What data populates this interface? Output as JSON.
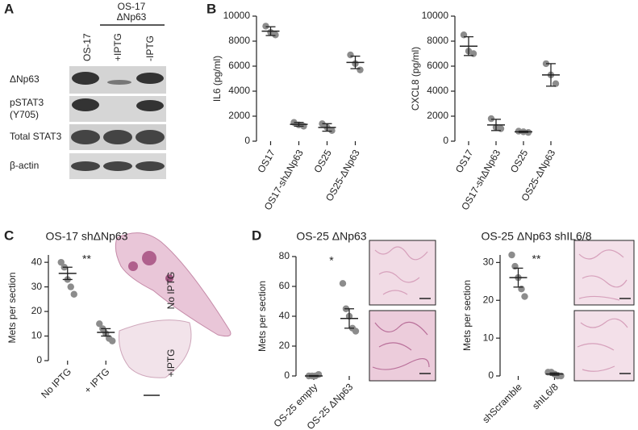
{
  "panels": {
    "A": {
      "label": "A",
      "header": [
        "OS-17",
        "ΔNp63"
      ],
      "lanes": [
        "OS-17",
        "+IPTG",
        "-IPTG"
      ],
      "rows": [
        [
          "ΔNp63"
        ],
        [
          "pSTAT3",
          "(Y705)"
        ],
        [
          "Total STAT3"
        ],
        [
          "β-actin"
        ]
      ]
    },
    "B": {
      "label": "B"
    },
    "C": {
      "label": "C",
      "image_labels": [
        "No IPTG",
        "+IPTG"
      ]
    },
    "D": {
      "label": "D"
    }
  },
  "chart_data": [
    {
      "type": "dot",
      "y_label": "IL6 (pg/ml)",
      "categories": [
        "OS17",
        "OS17-shΔNp63",
        "OS25",
        "OS25-ΔNp63"
      ],
      "points": [
        [
          9200,
          8700,
          8500
        ],
        [
          1500,
          1300,
          1200
        ],
        [
          1400,
          1100,
          850
        ],
        [
          6900,
          6200,
          5700
        ]
      ],
      "means": [
        8800,
        1350,
        1100,
        6300
      ],
      "errors": [
        350,
        150,
        300,
        500
      ],
      "color": "#8c8c8c",
      "ylim": [
        0,
        10000
      ],
      "yticks": [
        0,
        2000,
        4000,
        6000,
        8000,
        10000
      ]
    },
    {
      "type": "dot",
      "y_label": "CXCL8 (pg/ml)",
      "categories": [
        "OS17",
        "OS17-shΔNp63",
        "OS25",
        "OS25-ΔNp63"
      ],
      "points": [
        [
          8500,
          7200,
          7000
        ],
        [
          1800,
          1100,
          1000
        ],
        [
          800,
          750,
          700
        ],
        [
          6200,
          5300,
          4600
        ]
      ],
      "means": [
        7600,
        1300,
        750,
        5300
      ],
      "errors": [
        750,
        450,
        50,
        900
      ],
      "color": "#8c8c8c",
      "ylim": [
        0,
        10000
      ],
      "yticks": [
        0,
        2000,
        4000,
        6000,
        8000,
        10000
      ]
    },
    {
      "type": "dot",
      "title": "OS-17 shΔNp63",
      "y_label": "Mets per section",
      "categories": [
        "No IPTG",
        "+ IPTG"
      ],
      "points": [
        [
          40,
          38,
          33,
          30,
          27
        ],
        [
          15,
          13,
          11,
          9,
          8
        ]
      ],
      "means": [
        35.5,
        11.5
      ],
      "errors": [
        2.5,
        1.5
      ],
      "color": "#8c8c8c",
      "annotation": "**",
      "ylim": [
        0,
        43
      ],
      "yticks": [
        0,
        10,
        20,
        30,
        40
      ]
    },
    {
      "type": "dot",
      "title": "OS-25 ΔNp63",
      "y_label": "Mets per section",
      "categories": [
        "OS-25 empty",
        "OS-25 ΔNp63"
      ],
      "points": [
        [
          0,
          0,
          0,
          1
        ],
        [
          62,
          45,
          40,
          32,
          30
        ]
      ],
      "means": [
        0,
        38.5
      ],
      "errors": [
        0.3,
        6.5
      ],
      "color": "#8c8c8c",
      "annotation": "*",
      "ylim": [
        0,
        80
      ],
      "yticks": [
        0,
        20,
        40,
        60,
        80
      ]
    },
    {
      "type": "dot",
      "title": "OS-25 ΔNp63 shIL6/8",
      "y_label": "Mets per section",
      "categories": [
        "shScramble",
        "shIL6/8"
      ],
      "points": [
        [
          32,
          29,
          26,
          23,
          21
        ],
        [
          1,
          1,
          0.5,
          0,
          0
        ]
      ],
      "means": [
        26,
        0.5
      ],
      "errors": [
        2.5,
        0.3
      ],
      "color": "#8c8c8c",
      "annotation": "**",
      "ylim": [
        0,
        32
      ],
      "yticks": [
        0,
        10,
        20,
        30
      ]
    }
  ]
}
